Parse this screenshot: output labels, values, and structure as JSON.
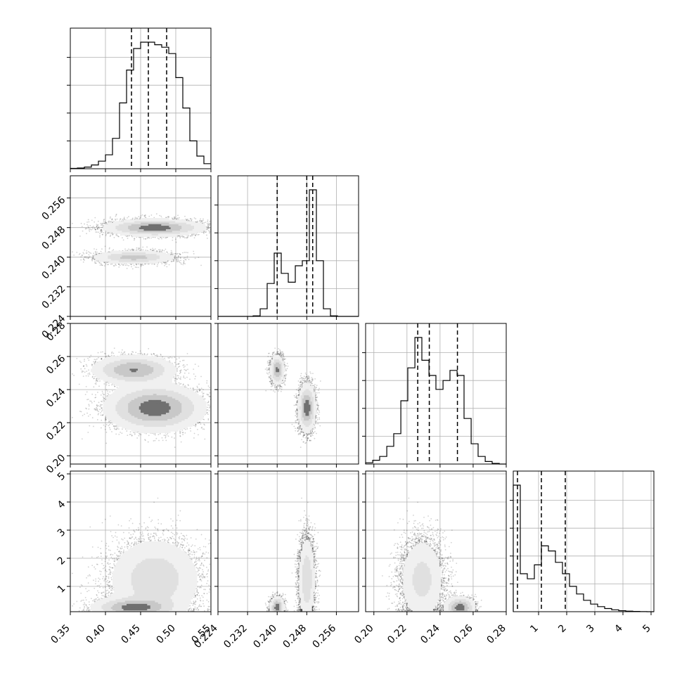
{
  "chart_data": {
    "type": "corner",
    "grid": true,
    "params": [
      {
        "range": [
          0.35,
          0.55
        ],
        "ticks": [
          0.35,
          0.4,
          0.45,
          0.5,
          0.55
        ],
        "tick_labels": [
          "0.35",
          "0.40",
          "0.45",
          "0.50",
          "0.55"
        ],
        "quantiles": [
          0.437,
          0.461,
          0.487
        ]
      },
      {
        "range": [
          0.224,
          0.262
        ],
        "ticks": [
          0.224,
          0.232,
          0.24,
          0.248,
          0.256
        ],
        "tick_labels": [
          "0.224",
          "0.232",
          "0.240",
          "0.248",
          "0.256"
        ],
        "quantiles": [
          0.24,
          0.248,
          0.2496
        ]
      },
      {
        "range": [
          0.195,
          0.28
        ],
        "ticks": [
          0.2,
          0.22,
          0.24,
          0.26,
          0.28
        ],
        "tick_labels": [
          "0.20",
          "0.22",
          "0.24",
          "0.26",
          "0.28"
        ],
        "quantiles": [
          0.2265,
          0.2335,
          0.2505
        ]
      },
      {
        "range": [
          0.1,
          5.1
        ],
        "ticks": [
          1,
          2,
          3,
          4,
          5
        ],
        "tick_labels": [
          "1",
          "2",
          "3",
          "4",
          "5"
        ],
        "quantiles": [
          0.25,
          1.1,
          1.95
        ]
      }
    ],
    "histograms": [
      {
        "bins": [
          0.35,
          0.36,
          0.37,
          0.38,
          0.39,
          0.4,
          0.41,
          0.42,
          0.43,
          0.44,
          0.45,
          0.46,
          0.47,
          0.48,
          0.49,
          0.5,
          0.51,
          0.52,
          0.53,
          0.54,
          0.55
        ],
        "counts": [
          0.003,
          0.006,
          0.013,
          0.03,
          0.06,
          0.11,
          0.24,
          0.52,
          0.78,
          0.95,
          1.0,
          1.0,
          0.98,
          0.96,
          0.91,
          0.72,
          0.48,
          0.22,
          0.1,
          0.04
        ]
      },
      {
        "bins": [
          0.224,
          0.2259,
          0.2278,
          0.2297,
          0.2316,
          0.2335,
          0.2354,
          0.2373,
          0.2392,
          0.2411,
          0.243,
          0.2449,
          0.2468,
          0.2487,
          0.2506,
          0.2525,
          0.2544,
          0.2563,
          0.2582,
          0.2601,
          0.262
        ],
        "counts": [
          0,
          0,
          0,
          0,
          0,
          0.004,
          0.06,
          0.26,
          0.5,
          0.34,
          0.27,
          0.4,
          0.44,
          1.0,
          0.44,
          0.06,
          0.004,
          0,
          0,
          0
        ]
      },
      {
        "bins": [
          0.195,
          0.1993,
          0.2035,
          0.2078,
          0.212,
          0.2163,
          0.2205,
          0.2248,
          0.229,
          0.2333,
          0.2375,
          0.2418,
          0.246,
          0.2503,
          0.2545,
          0.2588,
          0.263,
          0.2673,
          0.2715,
          0.2758,
          0.28
        ],
        "counts": [
          0.01,
          0.03,
          0.06,
          0.14,
          0.24,
          0.5,
          0.76,
          1.0,
          0.82,
          0.7,
          0.59,
          0.66,
          0.74,
          0.7,
          0.36,
          0.16,
          0.06,
          0.02,
          0.005,
          0
        ]
      },
      {
        "bins": [
          0.1,
          0.35,
          0.6,
          0.85,
          1.1,
          1.35,
          1.6,
          1.85,
          2.1,
          2.35,
          2.6,
          2.85,
          3.1,
          3.35,
          3.6,
          3.85,
          4.1,
          4.35,
          4.6,
          4.85,
          5.1
        ],
        "counts": [
          1.0,
          0.3,
          0.26,
          0.37,
          0.52,
          0.48,
          0.39,
          0.3,
          0.2,
          0.14,
          0.09,
          0.06,
          0.04,
          0.025,
          0.015,
          0.008,
          0.004,
          0.002,
          0.001,
          0
        ]
      }
    ],
    "components": [
      {
        "weight": 0.3,
        "mean": [
          0.44,
          0.24,
          0.252,
          0.25
        ],
        "sd": [
          0.028,
          0.0009,
          0.0042,
          0.18
        ]
      },
      {
        "weight": 0.7,
        "mean": [
          0.47,
          0.248,
          0.229,
          1.25
        ],
        "sd": [
          0.033,
          0.0011,
          0.0068,
          0.75
        ]
      }
    ]
  },
  "icons": {
    "plot": "corner-plot-icon"
  },
  "colors": {
    "ink": "#000000",
    "grid": "#b0b0b0",
    "fill_light": "#f0f0f0",
    "fill_mid": "#c8c8c8",
    "fill_dark": "#707070"
  }
}
